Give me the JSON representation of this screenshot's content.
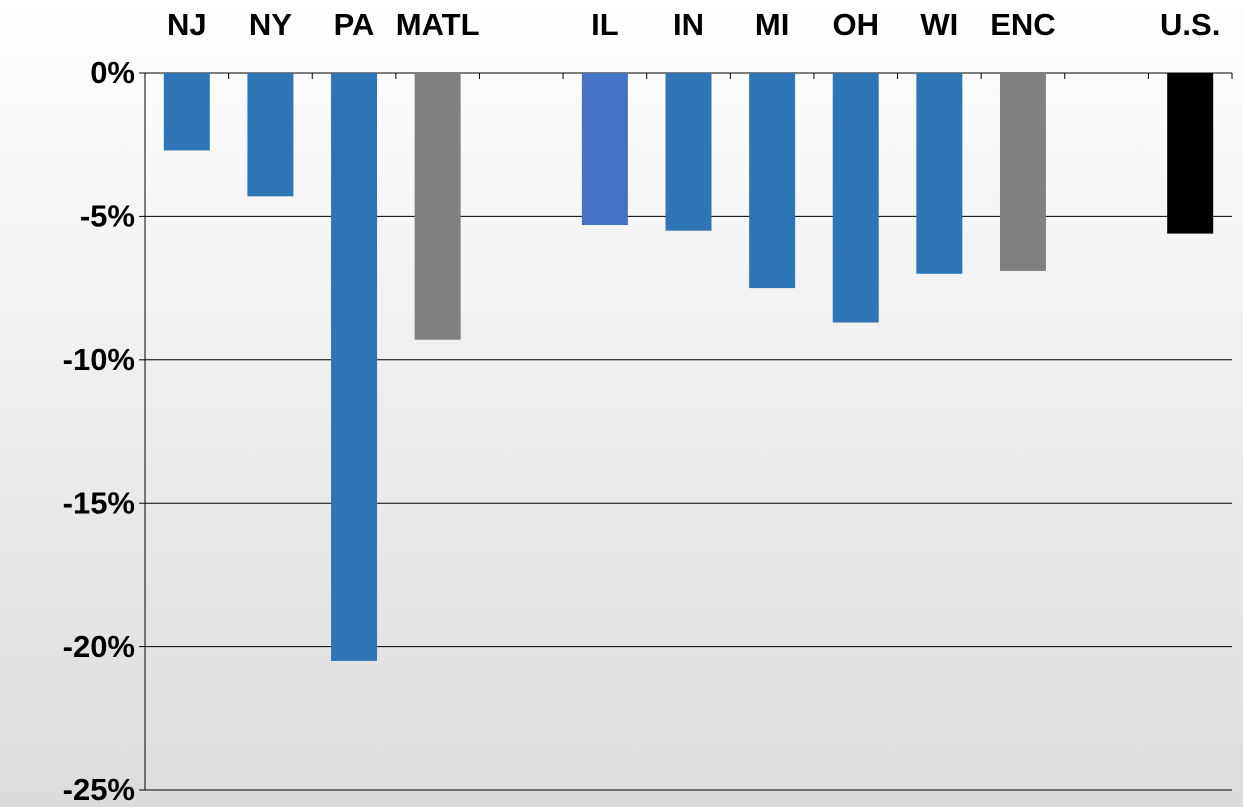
{
  "chart_data": {
    "type": "bar",
    "categories": [
      "NJ",
      "NY",
      "PA",
      "MATL",
      null,
      "IL",
      "IN",
      "MI",
      "OH",
      "WI",
      "ENC",
      null,
      "U.S."
    ],
    "values": [
      -2.7,
      -4.3,
      -20.5,
      -9.3,
      null,
      -5.3,
      -5.5,
      -7.5,
      -8.7,
      -7.0,
      -6.9,
      null,
      -5.6
    ],
    "colors": [
      "#2e75b6",
      "#2e75b6",
      "#2e75b6",
      "#808080",
      null,
      "#4472c4",
      "#2e75b6",
      "#2e75b6",
      "#2e75b6",
      "#2e75b6",
      "#808080",
      null,
      "#000000"
    ],
    "ylim": [
      -25,
      0
    ],
    "yticks": [
      {
        "value": 0,
        "label": "0%"
      },
      {
        "value": -5,
        "label": "-5%"
      },
      {
        "value": -10,
        "label": "-10%"
      },
      {
        "value": -15,
        "label": "-15%"
      },
      {
        "value": -20,
        "label": "-20%"
      },
      {
        "value": -25,
        "label": "-25%"
      }
    ],
    "grid": true
  }
}
